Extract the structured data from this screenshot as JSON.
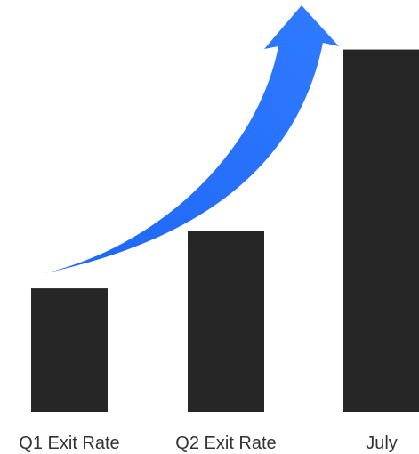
{
  "chart_data": {
    "type": "bar",
    "title": "",
    "xlabel": "",
    "ylabel": "",
    "categories": [
      "Q1 Exit Rate",
      "Q2 Exit Rate",
      "July"
    ],
    "values": [
      30,
      44,
      88
    ],
    "ylim": [
      0,
      100
    ],
    "grid": false,
    "legend": "none",
    "bar_color": "#262626",
    "annotations": [
      {
        "type": "arrow",
        "direction": "up-right",
        "meaning": "growth",
        "color": "#1f6bff"
      }
    ]
  }
}
